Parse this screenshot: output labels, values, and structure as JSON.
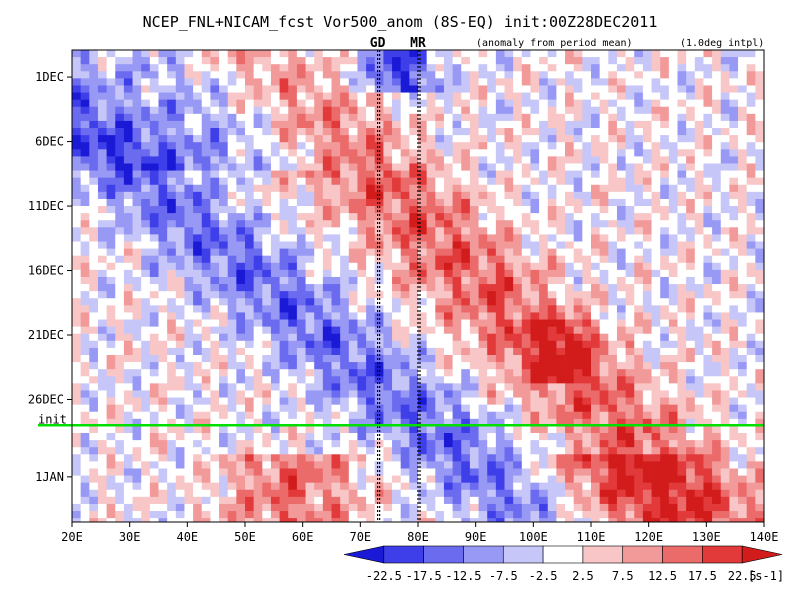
{
  "chart_data": {
    "type": "heatmap",
    "title": "NCEP_FNL+NICAM_fcst Vor500_anom (8S-EQ) init:00Z28DEC2011",
    "subtitle_left": "(anomaly from period mean)",
    "subtitle_right": "(1.0deg intpl)",
    "x_ticks": [
      "20E",
      "30E",
      "40E",
      "50E",
      "60E",
      "70E",
      "80E",
      "90E",
      "100E",
      "110E",
      "120E",
      "130E",
      "140E"
    ],
    "xlim": [
      20,
      140
    ],
    "y_ticks": [
      {
        "label": "1DEC",
        "day": 1
      },
      {
        "label": "6DEC",
        "day": 6
      },
      {
        "label": "11DEC",
        "day": 11
      },
      {
        "label": "16DEC",
        "day": 16
      },
      {
        "label": "21DEC",
        "day": 21
      },
      {
        "label": "26DEC",
        "day": 26
      },
      {
        "label": "1JAN",
        "day": 32
      }
    ],
    "ylim_days": [
      -1.1,
      35.5
    ],
    "init_line": {
      "label": "init",
      "day": 28
    },
    "markers": [
      {
        "label": "GD",
        "lon": 73
      },
      {
        "label": "MR",
        "lon": 80
      }
    ],
    "colorbar": {
      "levels": [
        "-22.5",
        "-17.5",
        "-12.5",
        "-7.5",
        "-2.5",
        "2.5",
        "7.5",
        "12.5",
        "17.5",
        "22.5"
      ],
      "unit": "[s-1]",
      "colors": [
        "#1a1ad6",
        "#3f3fea",
        "#6b6bf0",
        "#9898f5",
        "#c6c6f8",
        "#ffffff",
        "#f8c6c6",
        "#f29a9a",
        "#eb6a6a",
        "#e23a3a",
        "#d21c1c"
      ]
    },
    "colors": {
      "init_line": "#00e000",
      "marker": "#e00000",
      "frame": "#000000"
    }
  }
}
